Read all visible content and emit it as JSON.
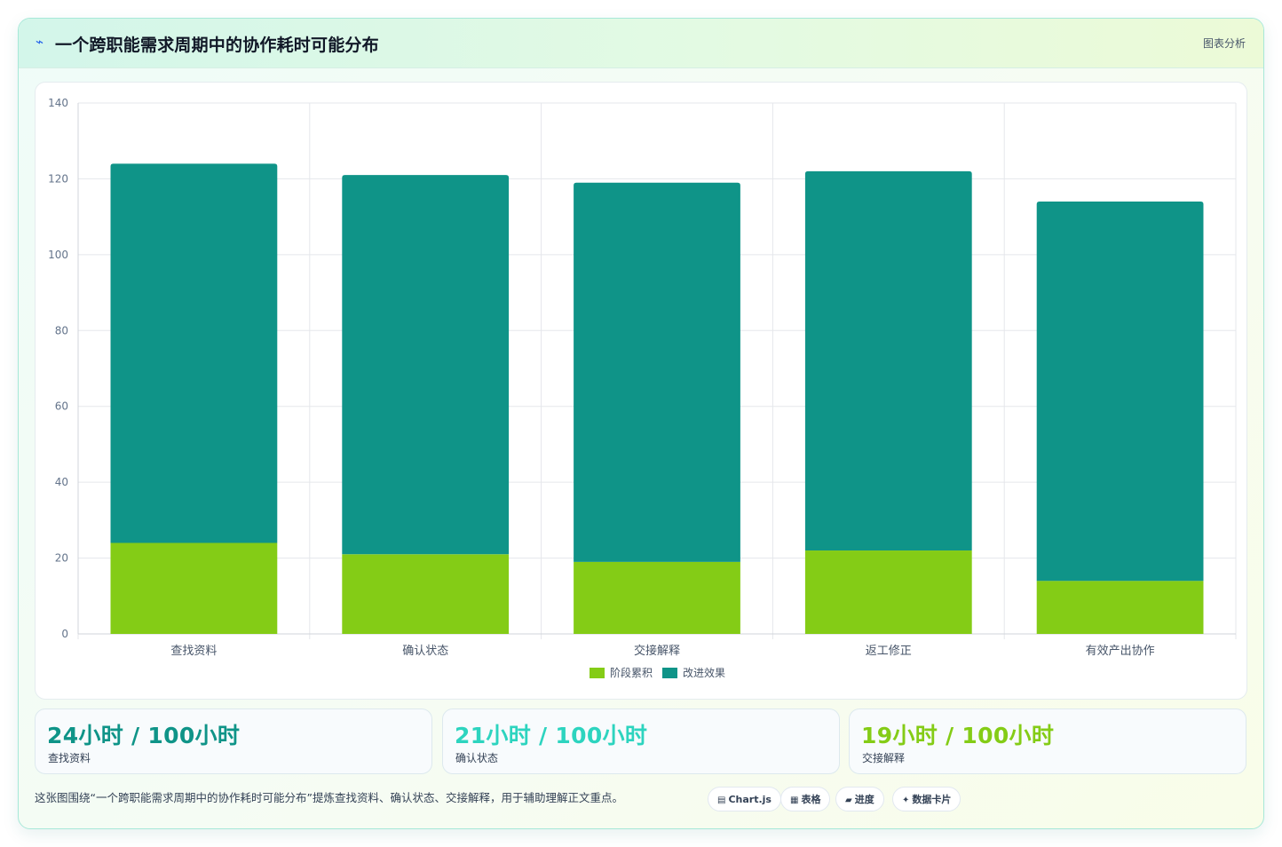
{
  "header": {
    "icon": "lightning-icon",
    "title": "一个跨职能需求周期中的协作耗时可能分布",
    "tag": "图表分析"
  },
  "chart_data": {
    "type": "bar",
    "stacked": true,
    "categories": [
      "查找资料",
      "确认状态",
      "交接解释",
      "返工修正",
      "有效产出协作"
    ],
    "series": [
      {
        "name": "阶段累积",
        "values": [
          24,
          21,
          19,
          22,
          14
        ],
        "color": "#84cc16"
      },
      {
        "name": "改进效果",
        "values": [
          100,
          100,
          100,
          100,
          100
        ],
        "color": "#0f9488"
      }
    ],
    "ylim": [
      0,
      140
    ],
    "yticks": [
      0,
      20,
      40,
      60,
      80,
      100,
      120,
      140
    ],
    "grid": true,
    "legend_position": "bottom"
  },
  "stats": [
    {
      "value": "24小时 / 100小时",
      "label": "查找资料",
      "color": "#0f9488"
    },
    {
      "value": "21小时 / 100小时",
      "label": "确认状态",
      "color": "#2dd4bf"
    },
    {
      "value": "19小时 / 100小时",
      "label": "交接解释",
      "color": "#84cc16"
    }
  ],
  "footnote": "这张图围绕“一个跨职能需求周期中的协作耗时可能分布”提炼查找资料、确认状态、交接解释，用于辅助理解正文重点。",
  "chips": [
    {
      "icon": "table-icon",
      "glyph": "▤",
      "label": "Chart.js"
    },
    {
      "icon": "grid-icon",
      "glyph": "▦",
      "label": "表格"
    },
    {
      "icon": "progress-icon",
      "glyph": "▰",
      "label": "进度"
    },
    {
      "icon": "sparkle-icon",
      "glyph": "✦",
      "label": "数据卡片"
    }
  ]
}
